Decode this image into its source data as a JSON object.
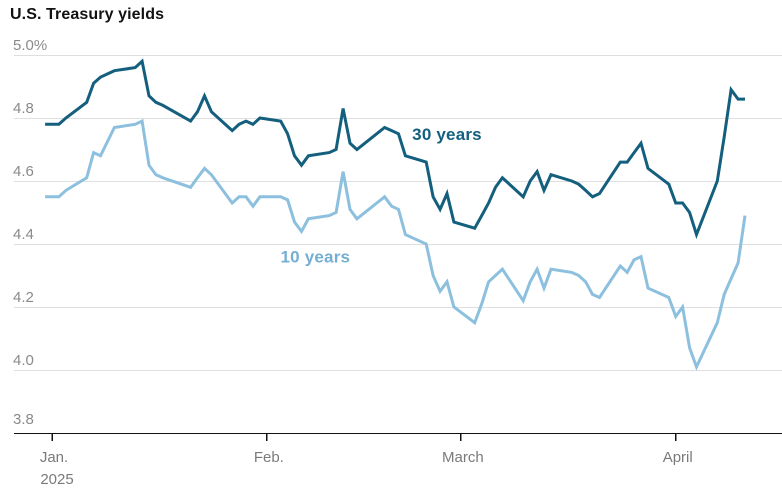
{
  "header": {
    "title": "U.S. Treasury yields"
  },
  "chart_data": {
    "type": "line",
    "title": "U.S. Treasury yields",
    "grid": true,
    "legend_position": "inline-annotations",
    "y_axis": {
      "unit": "%",
      "range": [
        3.8,
        5.0
      ],
      "ticks": [
        {
          "value": 5.0,
          "label": "5.0%"
        },
        {
          "value": 4.8,
          "label": "4.8"
        },
        {
          "value": 4.6,
          "label": "4.6"
        },
        {
          "value": 4.4,
          "label": "4.4"
        },
        {
          "value": 4.2,
          "label": "4.2"
        },
        {
          "value": 4.0,
          "label": "4.0"
        },
        {
          "value": 3.8,
          "label": "3.8",
          "baseline": true
        }
      ]
    },
    "x_axis": {
      "ticks": [
        {
          "label": "Jan.",
          "sublabel": "2025",
          "date": "2025-01-01"
        },
        {
          "label": "Feb.",
          "date": "2025-02-01"
        },
        {
          "label": "March",
          "date": "2025-03-01"
        },
        {
          "label": "April",
          "date": "2025-04-01"
        }
      ]
    },
    "dates": [
      "2024-12-31",
      "2025-01-02",
      "2025-01-03",
      "2025-01-06",
      "2025-01-07",
      "2025-01-08",
      "2025-01-10",
      "2025-01-13",
      "2025-01-14",
      "2025-01-15",
      "2025-01-16",
      "2025-01-17",
      "2025-01-21",
      "2025-01-22",
      "2025-01-23",
      "2025-01-24",
      "2025-01-27",
      "2025-01-28",
      "2025-01-29",
      "2025-01-30",
      "2025-01-31",
      "2025-02-03",
      "2025-02-04",
      "2025-02-05",
      "2025-02-06",
      "2025-02-07",
      "2025-02-10",
      "2025-02-11",
      "2025-02-12",
      "2025-02-13",
      "2025-02-14",
      "2025-02-18",
      "2025-02-19",
      "2025-02-20",
      "2025-02-21",
      "2025-02-24",
      "2025-02-25",
      "2025-02-26",
      "2025-02-27",
      "2025-02-28",
      "2025-03-03",
      "2025-03-04",
      "2025-03-05",
      "2025-03-06",
      "2025-03-07",
      "2025-03-10",
      "2025-03-11",
      "2025-03-12",
      "2025-03-13",
      "2025-03-14",
      "2025-03-17",
      "2025-03-18",
      "2025-03-19",
      "2025-03-20",
      "2025-03-21",
      "2025-03-24",
      "2025-03-25",
      "2025-03-26",
      "2025-03-27",
      "2025-03-28",
      "2025-03-31",
      "2025-04-01",
      "2025-04-02",
      "2025-04-03",
      "2025-04-04",
      "2025-04-07",
      "2025-04-08",
      "2025-04-09",
      "2025-04-10",
      "2025-04-11"
    ],
    "series": [
      {
        "name": "30 years",
        "color": "#135f7d",
        "values": [
          4.78,
          4.78,
          4.8,
          4.85,
          4.91,
          4.93,
          4.95,
          4.96,
          4.98,
          4.87,
          4.85,
          4.84,
          4.79,
          4.82,
          4.87,
          4.82,
          4.76,
          4.78,
          4.79,
          4.78,
          4.8,
          4.79,
          4.75,
          4.68,
          4.65,
          4.68,
          4.69,
          4.7,
          4.83,
          4.72,
          4.7,
          4.77,
          4.76,
          4.75,
          4.68,
          4.66,
          4.55,
          4.51,
          4.56,
          4.47,
          4.45,
          4.49,
          4.53,
          4.58,
          4.61,
          4.55,
          4.6,
          4.63,
          4.57,
          4.62,
          4.6,
          4.59,
          4.57,
          4.55,
          4.56,
          4.66,
          4.66,
          4.69,
          4.72,
          4.64,
          4.59,
          4.53,
          4.53,
          4.5,
          4.43,
          4.6,
          4.74,
          4.89,
          4.86,
          4.86
        ]
      },
      {
        "name": "10 years",
        "color": "#8cc0de",
        "values": [
          4.55,
          4.55,
          4.57,
          4.61,
          4.69,
          4.68,
          4.77,
          4.78,
          4.79,
          4.65,
          4.62,
          4.61,
          4.58,
          4.61,
          4.64,
          4.62,
          4.53,
          4.55,
          4.55,
          4.52,
          4.55,
          4.55,
          4.54,
          4.47,
          4.44,
          4.48,
          4.49,
          4.5,
          4.63,
          4.51,
          4.48,
          4.55,
          4.52,
          4.51,
          4.43,
          4.4,
          4.3,
          4.25,
          4.28,
          4.2,
          4.15,
          4.21,
          4.28,
          4.3,
          4.32,
          4.22,
          4.28,
          4.32,
          4.26,
          4.32,
          4.31,
          4.3,
          4.28,
          4.24,
          4.23,
          4.33,
          4.31,
          4.35,
          4.36,
          4.26,
          4.23,
          4.17,
          4.2,
          4.07,
          4.01,
          4.15,
          4.24,
          4.29,
          4.34,
          4.49
        ]
      }
    ],
    "annotations": [
      {
        "text": "30 years",
        "series": "30 years",
        "date": "2025-02-27",
        "value": 4.75,
        "color": "#135f7d"
      },
      {
        "text": "10 years",
        "series": "10 years",
        "date": "2025-02-08",
        "value": 4.36,
        "color": "#74aed3"
      }
    ],
    "colors": {
      "grid": "#dfdfdf",
      "axis": "#121212",
      "y_tick_labels": "#8a8a8a",
      "x_tick_labels": "#7a7a7a",
      "title": "#121212"
    }
  }
}
